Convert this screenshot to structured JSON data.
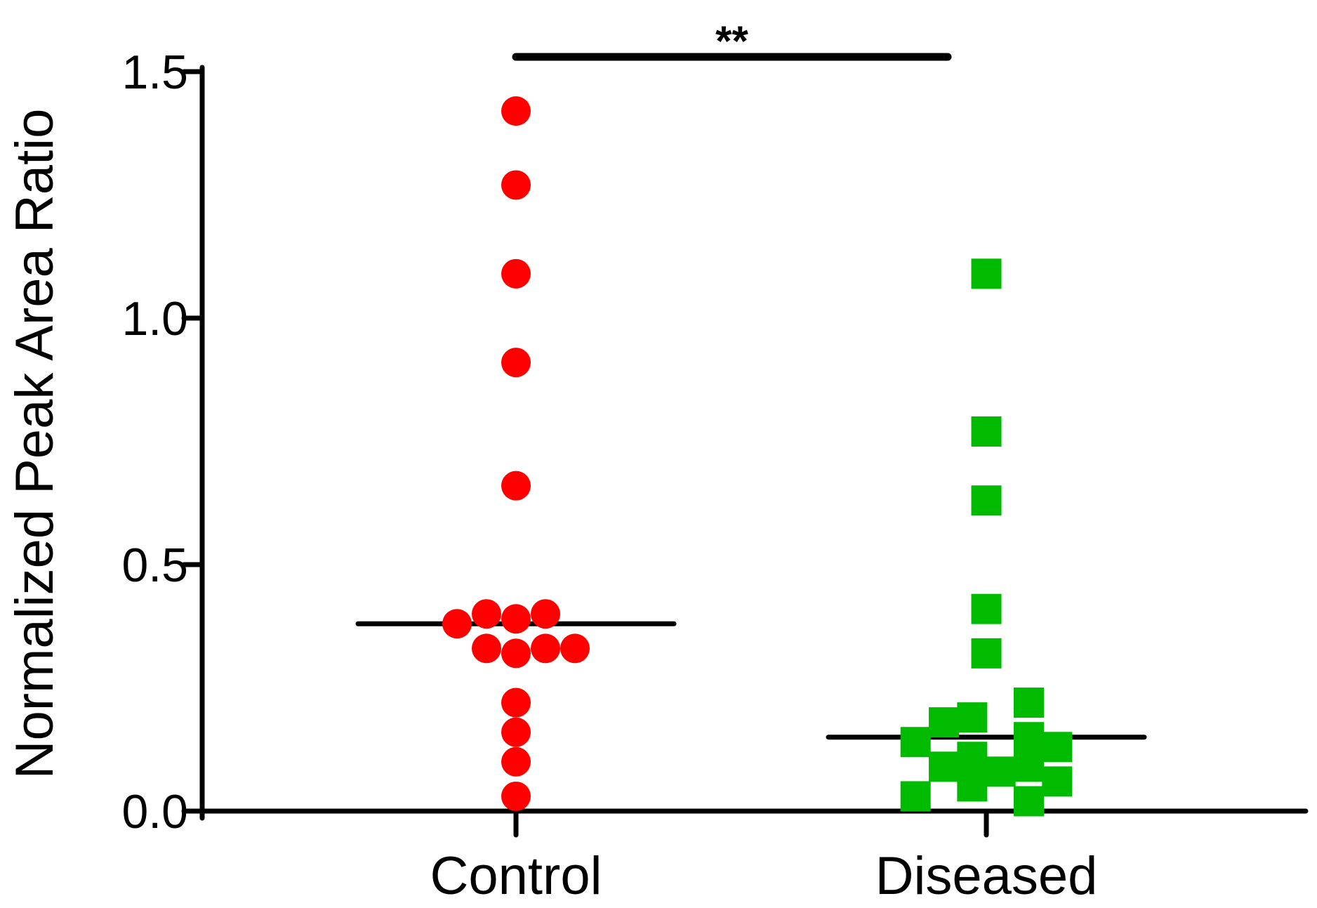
{
  "chart_data": {
    "type": "scatter",
    "subtype": "dot-plot",
    "title": "",
    "xlabel": "",
    "ylabel": "Normalized Peak  Area Ratio",
    "ylim": [
      0,
      1.5
    ],
    "yticks": [
      "0.0",
      "0.5",
      "1.0",
      "1.5"
    ],
    "categories": [
      "Control",
      "Diseased"
    ],
    "grid": false,
    "series": [
      {
        "name": "Control",
        "marker": "circle",
        "color": "#ff0000",
        "mean": 0.38,
        "points": [
          {
            "offset": 0,
            "y": 1.42
          },
          {
            "offset": 0,
            "y": 1.27
          },
          {
            "offset": 0,
            "y": 1.09
          },
          {
            "offset": 0,
            "y": 0.91
          },
          {
            "offset": 0,
            "y": 0.66
          },
          {
            "offset": -0.5,
            "y": 0.38
          },
          {
            "offset": -0.25,
            "y": 0.4
          },
          {
            "offset": 0,
            "y": 0.39
          },
          {
            "offset": 0.25,
            "y": 0.4
          },
          {
            "offset": -0.25,
            "y": 0.33
          },
          {
            "offset": 0,
            "y": 0.32
          },
          {
            "offset": 0.25,
            "y": 0.33
          },
          {
            "offset": 0.5,
            "y": 0.33
          },
          {
            "offset": 0,
            "y": 0.22
          },
          {
            "offset": 0,
            "y": 0.16
          },
          {
            "offset": 0,
            "y": 0.1
          },
          {
            "offset": 0,
            "y": 0.03
          }
        ]
      },
      {
        "name": "Diseased",
        "marker": "square",
        "color": "#00bb00",
        "mean": 0.15,
        "points": [
          {
            "offset": 0,
            "y": 1.09
          },
          {
            "offset": 0,
            "y": 0.77
          },
          {
            "offset": 0,
            "y": 0.63
          },
          {
            "offset": 0,
            "y": 0.41
          },
          {
            "offset": 0,
            "y": 0.32
          },
          {
            "offset": -0.6,
            "y": 0.14
          },
          {
            "offset": -0.6,
            "y": 0.03
          },
          {
            "offset": -0.36,
            "y": 0.18
          },
          {
            "offset": -0.36,
            "y": 0.09
          },
          {
            "offset": -0.12,
            "y": 0.19
          },
          {
            "offset": -0.12,
            "y": 0.11
          },
          {
            "offset": -0.12,
            "y": 0.05
          },
          {
            "offset": 0.12,
            "y": 0.08
          },
          {
            "offset": 0.36,
            "y": 0.22
          },
          {
            "offset": 0.36,
            "y": 0.15
          },
          {
            "offset": 0.36,
            "y": 0.09
          },
          {
            "offset": 0.36,
            "y": 0.02
          },
          {
            "offset": 0.6,
            "y": 0.13
          },
          {
            "offset": 0.6,
            "y": 0.06
          }
        ]
      }
    ],
    "annotations": [
      {
        "text": "**",
        "between": [
          "Control",
          "Diseased"
        ],
        "y": 1.53
      }
    ]
  }
}
